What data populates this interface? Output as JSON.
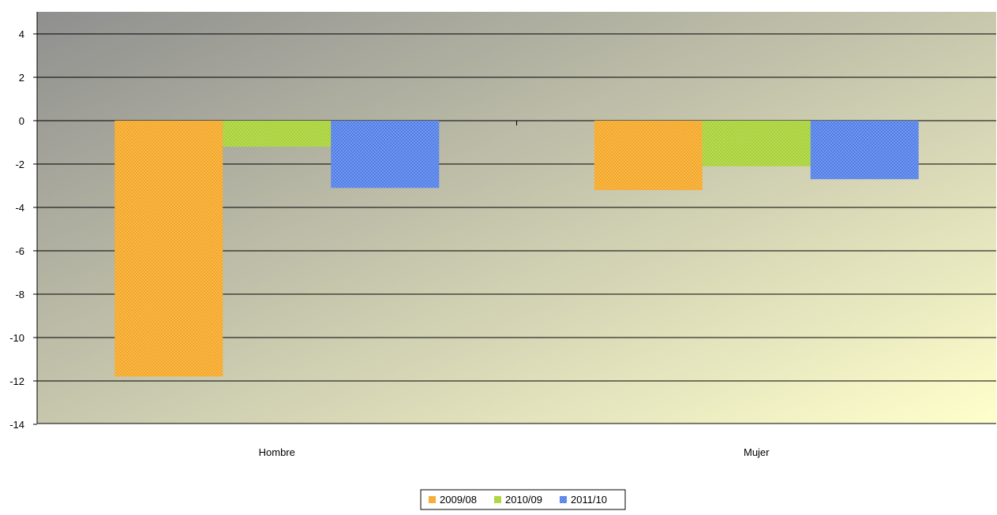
{
  "chart_data": {
    "type": "bar",
    "title": "",
    "xlabel": "",
    "ylabel": "",
    "categories": [
      "Hombre",
      "Mujer"
    ],
    "series": [
      {
        "name": "2009/08",
        "values": [
          -11.8,
          -3.2
        ],
        "color": "#f5a623"
      },
      {
        "name": "2010/09",
        "values": [
          -1.2,
          -2.1
        ],
        "color": "#a6d132"
      },
      {
        "name": "2011/10",
        "values": [
          -3.1,
          -2.7
        ],
        "color": "#4f7de8"
      }
    ],
    "ylim": [
      -14,
      5
    ],
    "yticks": [
      "4",
      "2",
      "0",
      "-2",
      "-4",
      "-6",
      "-8",
      "-10",
      "-12",
      "-14"
    ],
    "grid": true,
    "legend_position": "bottom",
    "plot_background": {
      "from": "#8f8f8f",
      "to": "#ffffcc"
    }
  }
}
